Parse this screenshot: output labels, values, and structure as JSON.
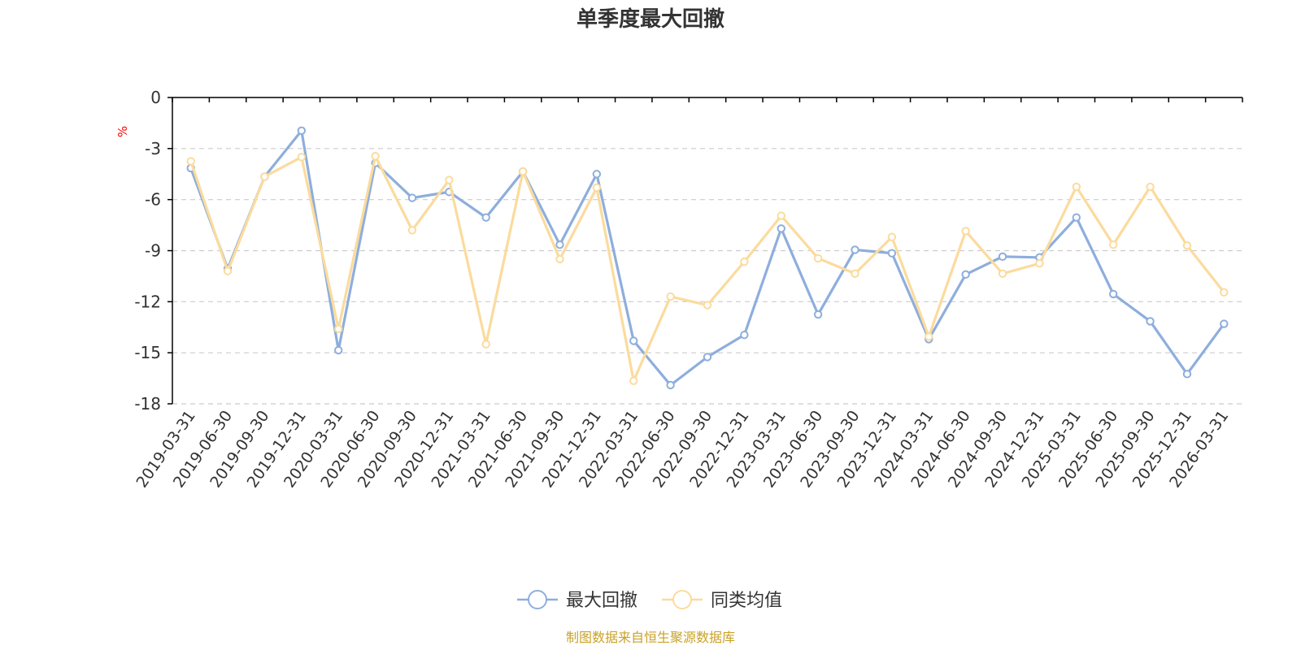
{
  "chart_data": {
    "type": "line",
    "title": "单季度最大回撤",
    "ylabel": "%",
    "xlabel": "",
    "ylim": [
      -18,
      0
    ],
    "yticks": [
      0,
      -3,
      -6,
      -9,
      -12,
      -15,
      -18
    ],
    "y_grid": true,
    "legend_position": "bottom-center",
    "categories": [
      "2019-03-31",
      "2019-06-30",
      "2019-09-30",
      "2019-12-31",
      "2020-03-31",
      "2020-06-30",
      "2020-09-30",
      "2020-12-31",
      "2021-03-31",
      "2021-06-30",
      "2021-09-30",
      "2021-12-31",
      "2022-03-31",
      "2022-06-30",
      "2022-09-30",
      "2022-12-31",
      "2023-03-31",
      "2023-06-30",
      "2023-09-30",
      "2023-12-31",
      "2024-03-31",
      "2024-06-30",
      "2024-09-30",
      "2024-12-31",
      "2025-03-31",
      "2025-06-30",
      "2025-09-30",
      "2025-12-31",
      "2026-03-31"
    ],
    "series": [
      {
        "name": "最大回撤",
        "color": "#8eaedc",
        "values": [
          -4.15,
          -10.05,
          -4.65,
          -1.95,
          -14.85,
          -3.85,
          -5.9,
          -5.55,
          -7.05,
          -4.35,
          -8.65,
          -4.5,
          -14.3,
          -16.9,
          -15.25,
          -13.95,
          -7.7,
          -12.75,
          -8.95,
          -9.15,
          -14.2,
          -10.4,
          -9.35,
          -9.4,
          -7.05,
          -11.55,
          -13.15,
          -16.25,
          -13.3
        ]
      },
      {
        "name": "同类均值",
        "color": "#fbdb9d",
        "values": [
          -3.75,
          -10.2,
          -4.65,
          -3.5,
          -13.6,
          -3.45,
          -7.8,
          -4.85,
          -14.5,
          -4.35,
          -9.5,
          -5.3,
          -16.65,
          -11.7,
          -12.2,
          -9.65,
          -6.95,
          -9.45,
          -10.35,
          -8.2,
          -14.05,
          -7.85,
          -10.35,
          -9.75,
          -5.25,
          -8.65,
          -5.25,
          -8.7,
          -11.45
        ]
      }
    ]
  },
  "colors": {
    "unit_label": "#ff0000",
    "source_text": "#c9a227",
    "axis": "#000000",
    "grid": "#cccccc"
  },
  "source_note": "制图数据来自恒生聚源数据库"
}
